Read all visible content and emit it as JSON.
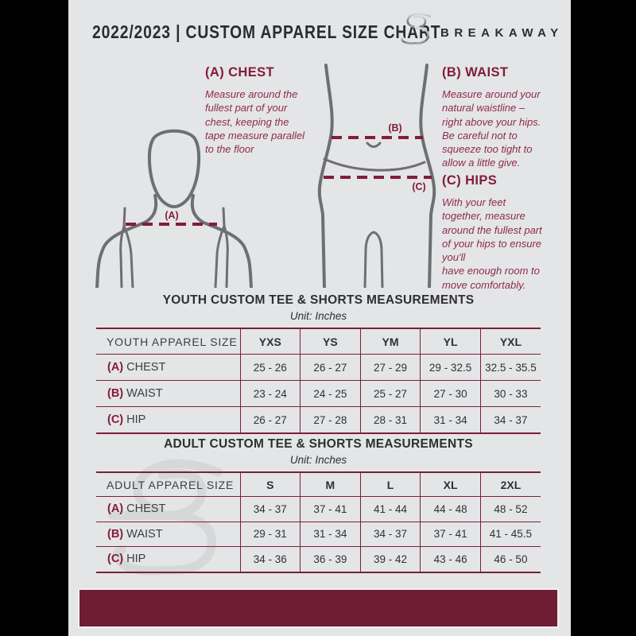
{
  "header": {
    "title": "2022/2023  |  CUSTOM APPAREL SIZE CHART",
    "brand": "BREAKAWAY"
  },
  "guide": {
    "chest": {
      "heading": "(A) CHEST",
      "marker": "(A)",
      "body": "Measure around the\nfullest part of your\nchest, keeping the\ntape measure parallel\nto the floor"
    },
    "waist": {
      "heading": "(B) WAIST",
      "marker": "(B)",
      "body": "Measure around your\nnatural waistline –\nright above your hips.\nBe careful not to\nsqueeze too tight to\nallow a little give."
    },
    "hips": {
      "heading": "(C) HIPS",
      "marker": "(C)",
      "body": "With your feet\ntogether, measure\naround the fullest part\nof your hips to ensure\nyou'll\nhave enough room to\nmove comfortably."
    }
  },
  "tables": {
    "youth": {
      "title": "YOUTH CUSTOM TEE & SHORTS MEASUREMENTS",
      "unit": "Unit: Inches",
      "header": [
        "YOUTH APPAREL SIZE",
        "YXS",
        "YS",
        "YM",
        "YL",
        "YXL"
      ],
      "rows": [
        {
          "prefix": "(A)",
          "label": "CHEST",
          "values": [
            "25 - 26",
            "26 - 27",
            "27 - 29",
            "29 - 32.5",
            "32.5 - 35.5"
          ]
        },
        {
          "prefix": "(B)",
          "label": "WAIST",
          "values": [
            "23 - 24",
            "24 - 25",
            "25 - 27",
            "27 - 30",
            "30 - 33"
          ]
        },
        {
          "prefix": "(C)",
          "label": "HIP",
          "values": [
            "26 - 27",
            "27 - 28",
            "28 - 31",
            "31 - 34",
            "34 - 37"
          ]
        }
      ]
    },
    "adult": {
      "title": "ADULT CUSTOM TEE & SHORTS MEASUREMENTS",
      "unit": "Unit: Inches",
      "header": [
        "ADULT APPAREL SIZE",
        "S",
        "M",
        "L",
        "XL",
        "2XL"
      ],
      "rows": [
        {
          "prefix": "(A)",
          "label": "CHEST",
          "values": [
            "34 - 37",
            "37 - 41",
            "41 - 44",
            "44 - 48",
            "48 - 52"
          ]
        },
        {
          "prefix": "(B)",
          "label": "WAIST",
          "values": [
            "29 - 31",
            "31 - 34",
            "34 - 37",
            "37 - 41",
            "41 - 45.5"
          ]
        },
        {
          "prefix": "(C)",
          "label": "HIP",
          "values": [
            "34 - 36",
            "36 - 39",
            "39 - 42",
            "43 - 46",
            "46 - 50"
          ]
        }
      ]
    }
  },
  "colors": {
    "page_bg": "#e4e5e7",
    "side_bars": "#000000",
    "maroon_dark": "#6f1d33",
    "maroon_heading": "#821c3a",
    "maroon_text": "#8e2b49",
    "table_border": "#7b2036",
    "figure_gray": "#6d6f71",
    "text_dark": "#2f3032"
  }
}
